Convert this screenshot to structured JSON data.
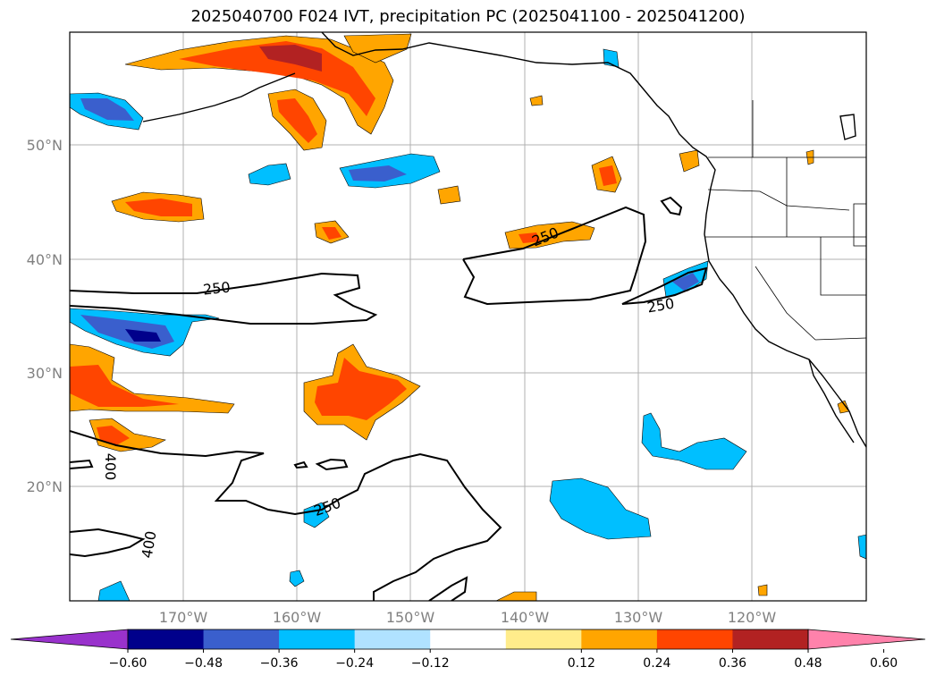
{
  "title": "2025040700 F024 IVT, precipitation PC (2025041100 - 2025041200)",
  "latitude_labels": [
    "50°N",
    "40°N",
    "30°N",
    "20°N"
  ],
  "longitude_labels": [
    "170°W",
    "160°W",
    "150°W",
    "140°W",
    "130°W",
    "120°W"
  ],
  "colorbar": {
    "tick_labels": [
      "−0.60",
      "−0.48",
      "−0.36",
      "−0.24",
      "−0.12",
      "0.12",
      "0.24",
      "0.36",
      "0.48",
      "0.60"
    ],
    "colors": [
      "#9932cc",
      "#00008b",
      "#3a5fcd",
      "#00bfff",
      "#b0e2ff",
      "#ffffff",
      "#ffec8b",
      "#ffa500",
      "#ff4500",
      "#b22222",
      "#ff82ab"
    ]
  },
  "ivt_contour_labels": [
    "250",
    "250",
    "250",
    "250",
    "400",
    "400"
  ],
  "colors": {
    "contour": "#000000",
    "grid": "#b0b0b0",
    "coast": "#000000"
  }
}
